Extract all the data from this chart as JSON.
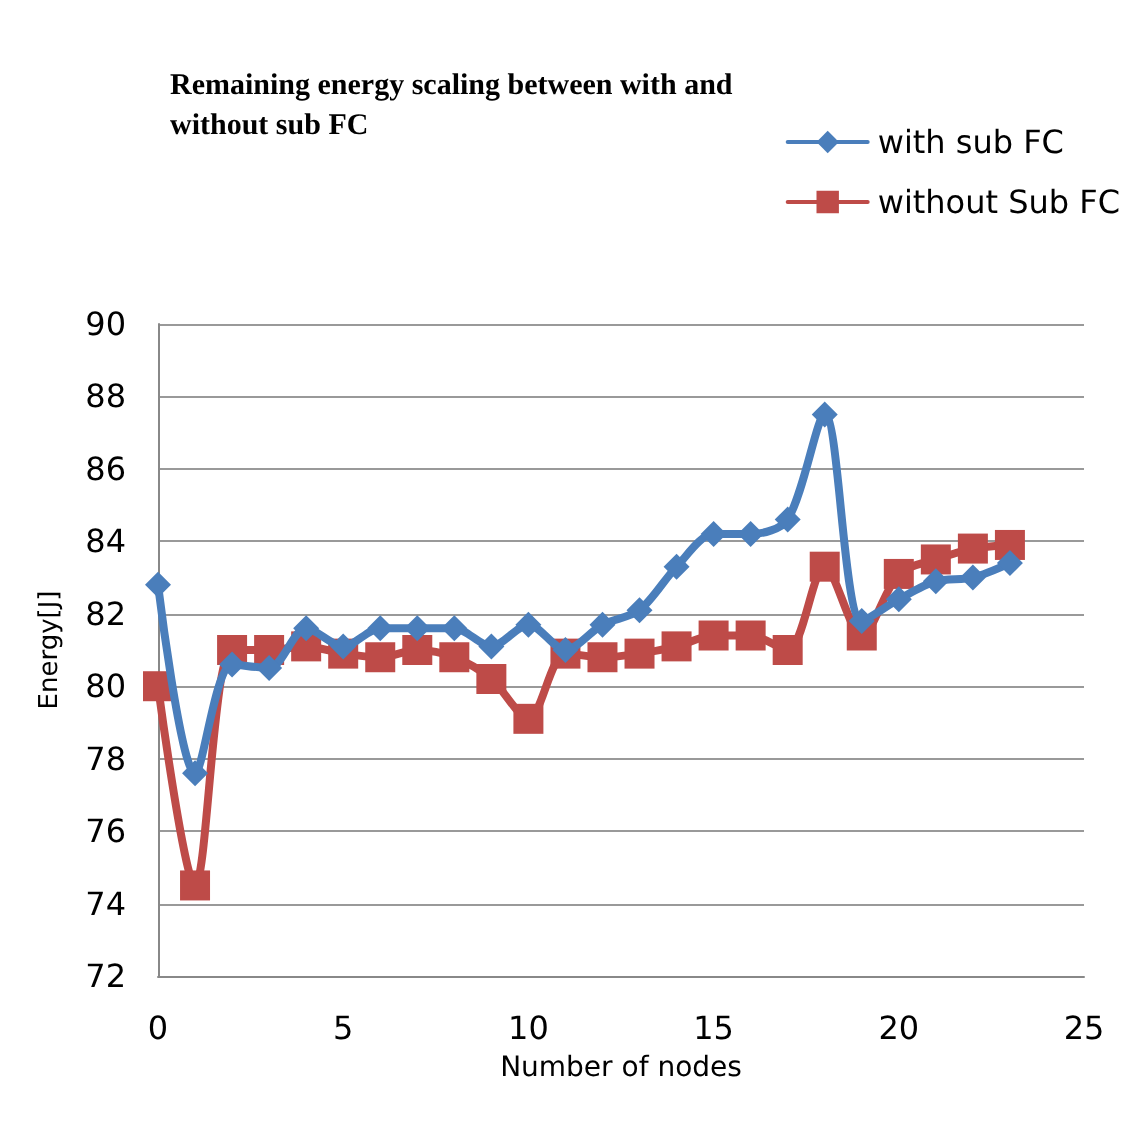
{
  "chart_data": {
    "type": "line",
    "title": "Remaining energy scaling between with and\nwithout sub FC",
    "xlabel": "Number of nodes",
    "ylabel": "Energy[J]",
    "x": [
      0,
      1,
      2,
      3,
      4,
      5,
      6,
      7,
      8,
      9,
      10,
      11,
      12,
      13,
      14,
      15,
      16,
      17,
      18,
      19,
      20,
      21,
      22,
      23
    ],
    "series": [
      {
        "name": "with sub FC",
        "color": "#4a7ebb",
        "marker": "diamond",
        "values": [
          82.8,
          77.6,
          80.6,
          80.5,
          81.6,
          81.1,
          81.6,
          81.6,
          81.6,
          81.1,
          81.7,
          81.0,
          81.7,
          82.1,
          83.3,
          84.2,
          84.2,
          84.6,
          87.5,
          81.8,
          82.4,
          82.9,
          83.0,
          83.4
        ]
      },
      {
        "name": "without Sub FC",
        "color": "#be4b48",
        "marker": "square",
        "values": [
          80.0,
          74.5,
          81.0,
          81.0,
          81.1,
          80.9,
          80.8,
          81.0,
          80.8,
          80.2,
          79.1,
          80.9,
          80.8,
          80.9,
          81.1,
          81.4,
          81.4,
          81.0,
          83.3,
          81.4,
          83.1,
          83.5,
          83.8,
          83.9
        ]
      }
    ],
    "xlim": [
      0,
      25
    ],
    "xticks": [
      0,
      5,
      10,
      15,
      20,
      25
    ],
    "ylim": [
      72,
      90
    ],
    "yticks": [
      72,
      74,
      76,
      78,
      80,
      82,
      84,
      86,
      88,
      90
    ],
    "grid": "y",
    "legend": "top right",
    "line_style": "solid"
  }
}
